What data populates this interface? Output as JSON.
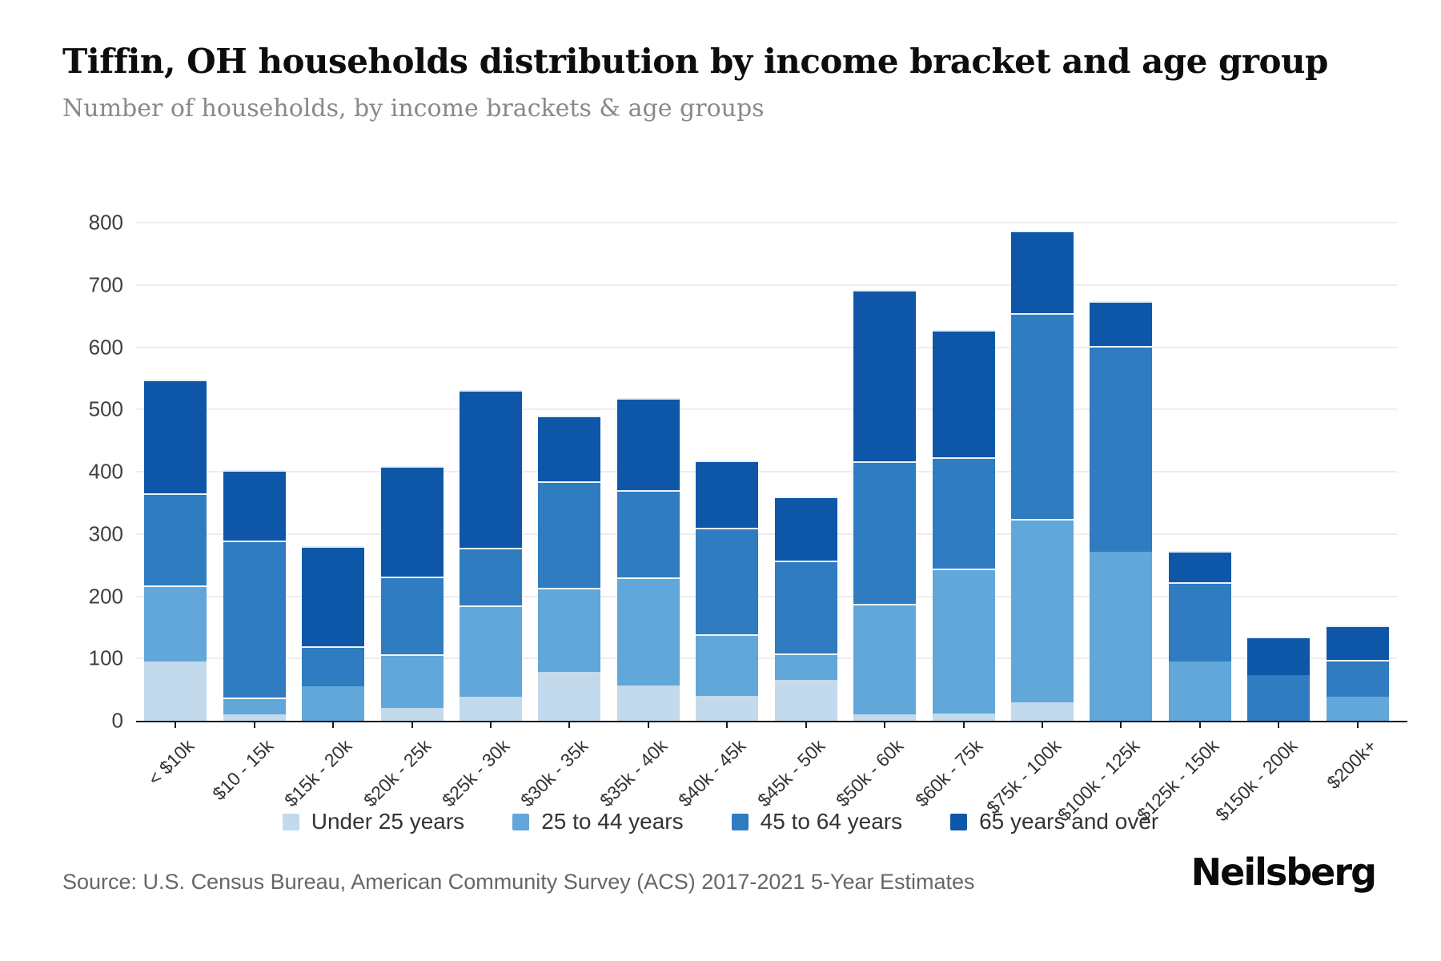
{
  "page": {
    "title": "Tiffin, OH households distribution by income bracket and age group",
    "subtitle": "Number of households, by income brackets & age groups",
    "source": "Source: U.S. Census Bureau, American Community Survey (ACS) 2017-2021 5-Year Estimates",
    "brand": "Neilsberg"
  },
  "colors": {
    "background": "#ffffff",
    "gridline": "#ededed",
    "axis": "#1a1a1a",
    "title": "#0d0d0d",
    "subtitle": "#898989",
    "tick_label": "#3f3f3f",
    "source": "#666666"
  },
  "chart_data": {
    "type": "bar",
    "stacked": true,
    "title": "Tiffin, OH households distribution by income bracket and age group",
    "subtitle": "Number of households, by income brackets & age groups",
    "xlabel": "",
    "ylabel": "Number of households",
    "ylim": [
      0,
      800
    ],
    "yticks": [
      0,
      100,
      200,
      300,
      400,
      500,
      600,
      700,
      800
    ],
    "grid": true,
    "legend_position": "bottom",
    "categories": [
      "< $10k",
      "$10 - 15k",
      "$15k - 20k",
      "$20k - 25k",
      "$25k - 30k",
      "$30k - 35k",
      "$35k - 40k",
      "$40k - 45k",
      "$45k - 50k",
      "$50k - 60k",
      "$60k - 75k",
      "$75k - 100k",
      "$100k - 125k",
      "$125k - 150k",
      "$150k - 200k",
      "$200k+"
    ],
    "series": [
      {
        "name": "Under 25 years",
        "color": "#c3d9ec",
        "values": [
          95,
          10,
          0,
          20,
          38,
          78,
          57,
          40,
          65,
          10,
          12,
          30,
          0,
          0,
          0,
          0
        ]
      },
      {
        "name": "25 to 44 years",
        "color": "#61a7d9",
        "values": [
          120,
          25,
          55,
          83,
          144,
          132,
          171,
          96,
          40,
          175,
          230,
          292,
          272,
          95,
          0,
          38
        ]
      },
      {
        "name": "45 to 64 years",
        "color": "#2f7cc0",
        "values": [
          145,
          250,
          62,
          122,
          90,
          168,
          137,
          169,
          147,
          227,
          176,
          328,
          328,
          125,
          73,
          57
        ]
      },
      {
        "name": "65 years and over",
        "color": "#0e57a8",
        "values": [
          180,
          110,
          158,
          175,
          251,
          103,
          145,
          105,
          100,
          273,
          202,
          130,
          70,
          48,
          59,
          53
        ]
      }
    ],
    "bar_totals": [
      540,
      395,
      275,
      400,
      523,
      481,
      510,
      410,
      352,
      685,
      620,
      780,
      670,
      268,
      132,
      148
    ]
  }
}
